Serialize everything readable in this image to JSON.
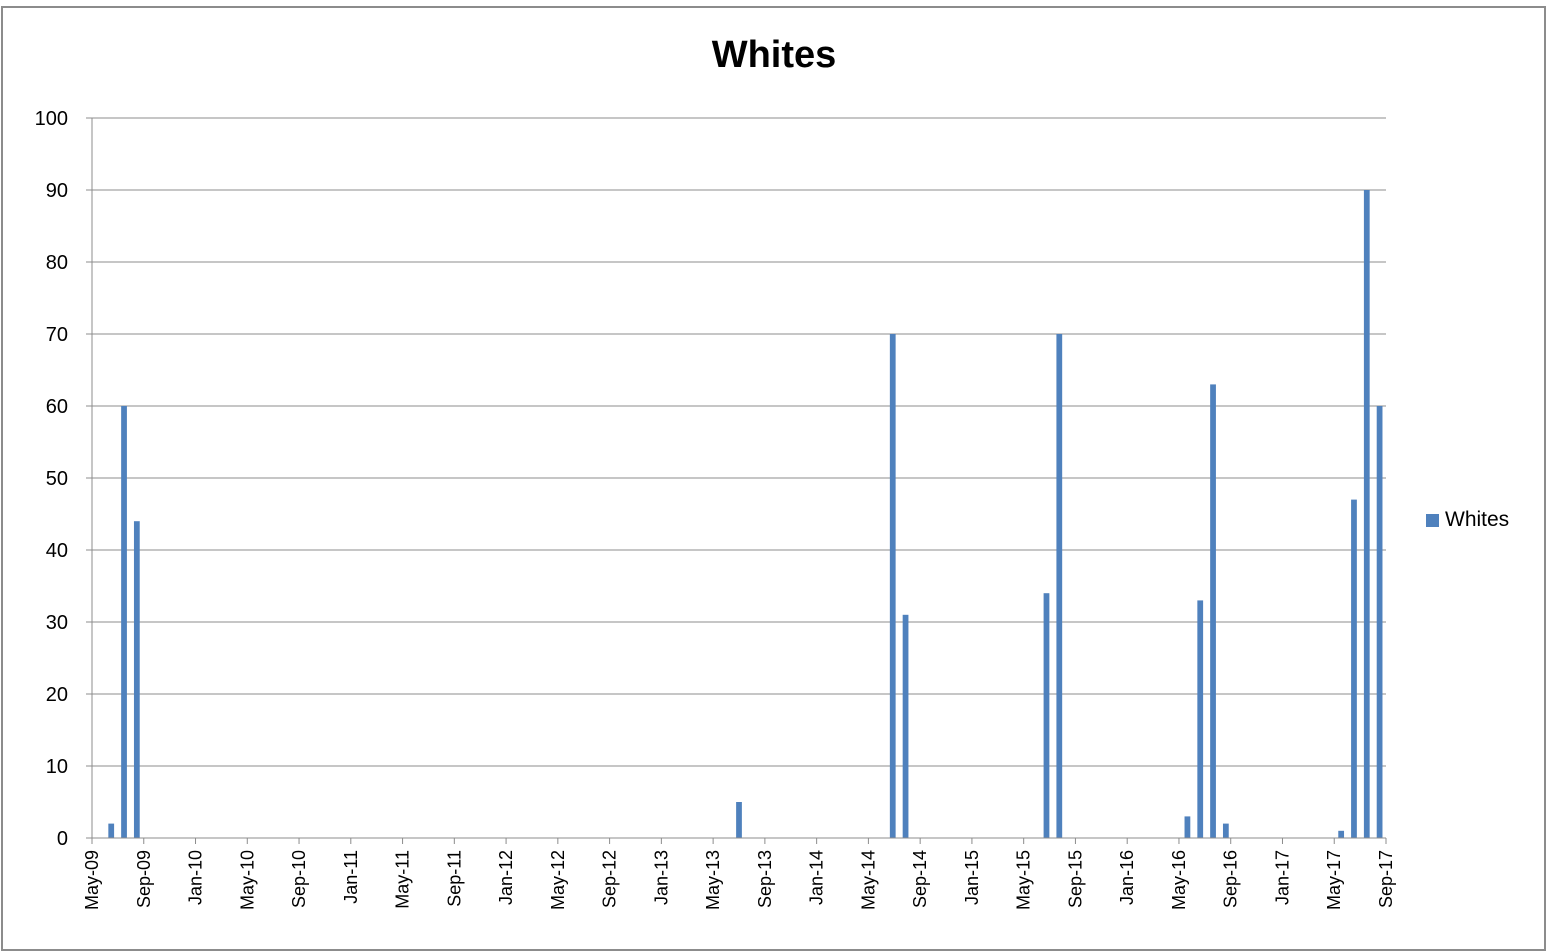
{
  "chart_data": {
    "type": "bar",
    "title": "Whites",
    "xlabel": "",
    "ylabel": "",
    "ylim": [
      0,
      100
    ],
    "y_ticks": [
      0,
      10,
      20,
      30,
      40,
      50,
      60,
      70,
      80,
      90,
      100
    ],
    "x_range": [
      "2009-05",
      "2017-09"
    ],
    "x_tick_labels": [
      "May-09",
      "Sep-09",
      "Jan-10",
      "May-10",
      "Sep-10",
      "Jan-11",
      "May-11",
      "Sep-11",
      "Jan-12",
      "May-12",
      "Sep-12",
      "Jan-13",
      "May-13",
      "Sep-13",
      "Jan-14",
      "May-14",
      "Sep-14",
      "Jan-15",
      "May-15",
      "Sep-15",
      "Jan-16",
      "May-16",
      "Sep-16",
      "Jan-17",
      "May-17",
      "Sep-17"
    ],
    "grid": true,
    "legend_position": "right",
    "color": "#4f81bd",
    "series": [
      {
        "name": "Whites",
        "points": [
          {
            "x": "2009-06",
            "y": 2
          },
          {
            "x": "2009-07",
            "y": 60
          },
          {
            "x": "2009-08",
            "y": 44
          },
          {
            "x": "2013-07",
            "y": 5
          },
          {
            "x": "2014-07",
            "y": 70
          },
          {
            "x": "2014-08",
            "y": 31
          },
          {
            "x": "2015-07",
            "y": 34
          },
          {
            "x": "2015-08",
            "y": 70
          },
          {
            "x": "2016-06",
            "y": 3
          },
          {
            "x": "2016-07",
            "y": 33
          },
          {
            "x": "2016-08",
            "y": 63
          },
          {
            "x": "2016-09",
            "y": 2
          },
          {
            "x": "2017-06",
            "y": 1
          },
          {
            "x": "2017-07",
            "y": 47
          },
          {
            "x": "2017-08",
            "y": 90
          },
          {
            "x": "2017-09",
            "y": 60
          }
        ]
      }
    ]
  }
}
